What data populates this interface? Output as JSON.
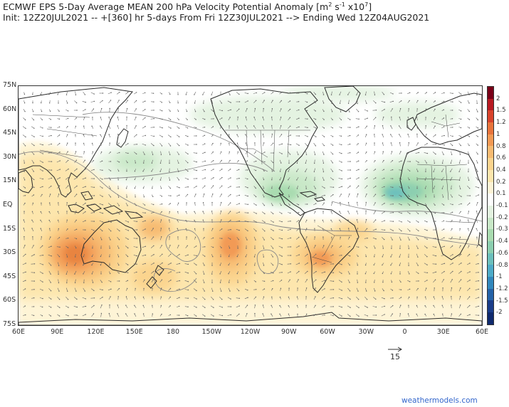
{
  "title_line1": "ECMWF EPS 5-Day Average MEAN 200 hPa Velocity Potential Anomaly [m",
  "title_units_sup1": "2",
  "title_units_mid": " s",
  "title_units_sup2": "-1",
  "title_units_mid2": " x10",
  "title_units_sup3": "7",
  "title_units_end": "]",
  "title_line2": "Init: 12Z20JUL2021 -- +[360] hr  5-days From Fri 12Z30JUL2021 --> Ending Wed 12Z04AUG2021",
  "lat_labels": [
    "75N",
    "60N",
    "45N",
    "30N",
    "15N",
    "EQ",
    "15S",
    "30S",
    "45S",
    "60S",
    "75S"
  ],
  "lon_labels": [
    "60E",
    "90E",
    "120E",
    "150E",
    "180",
    "150W",
    "120W",
    "90W",
    "60W",
    "30W",
    "0",
    "30E",
    "60E"
  ],
  "colorbar": {
    "labels": [
      "2",
      "1.5",
      "1.2",
      "1",
      "0.8",
      "0.6",
      "0.4",
      "0.2",
      "0.1",
      "-0.1",
      "-0.2",
      "-0.3",
      "-0.4",
      "-0.6",
      "-0.8",
      "-1",
      "-1.2",
      "-1.5",
      "-2"
    ],
    "colors": [
      "#7a0018",
      "#b81a22",
      "#d8432c",
      "#e8743c",
      "#f29a55",
      "#f7bb72",
      "#fbd48e",
      "#fde6ad",
      "#fef4d6",
      "#ffffff",
      "#e4f3e1",
      "#c9e8c8",
      "#a9dbb0",
      "#8ccfb0",
      "#6cc0bd",
      "#4eabc8",
      "#3288bd",
      "#2563a8",
      "#1a3d8a",
      "#0f2a6e"
    ]
  },
  "reference_vector_label": "15",
  "credit": "weathermodels.com",
  "map": {
    "ocean_color": "#ffffff",
    "coastline_color": "#2a2a2a",
    "vector_color": "#666666"
  }
}
